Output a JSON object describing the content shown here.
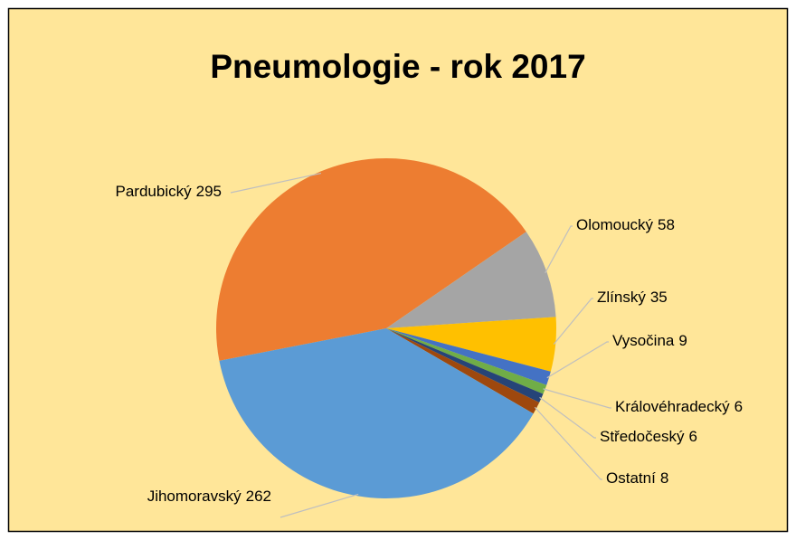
{
  "chart_data": {
    "type": "pie",
    "title": "Pneumologie - rok 2017",
    "categories": [
      "Pardubický",
      "Olomoucký",
      "Zlínský",
      "Vysočina",
      "Královéhradecký",
      "Středočeský",
      "Ostatní",
      "Jihomoravský"
    ],
    "values": [
      295,
      58,
      35,
      9,
      6,
      6,
      8,
      262
    ],
    "colors": [
      "#ED7D31",
      "#A5A5A5",
      "#FFC000",
      "#4472C4",
      "#70AD47",
      "#264478",
      "#9E480E",
      "#5B9BD5"
    ]
  }
}
